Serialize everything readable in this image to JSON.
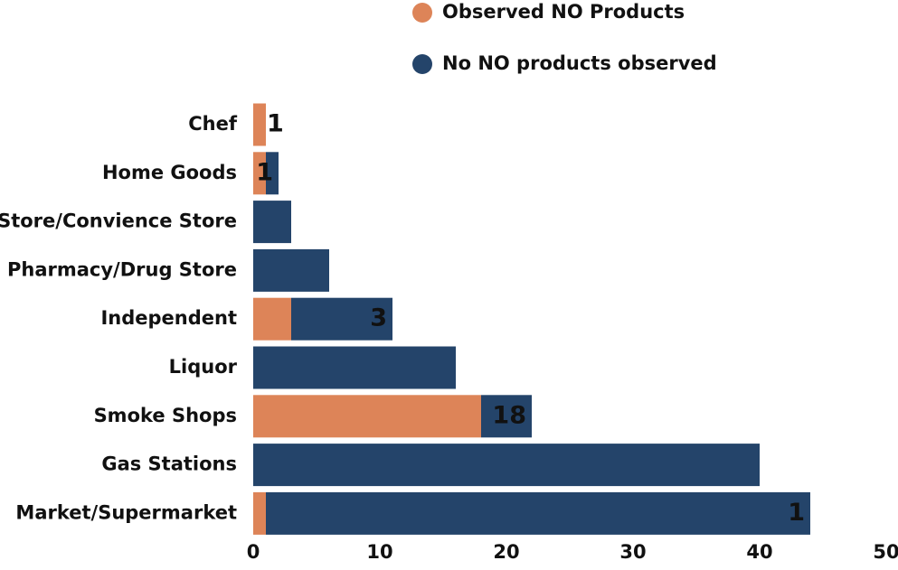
{
  "chart_data": {
    "type": "stacked-bar-horizontal",
    "categories": [
      "Chef",
      "Home Goods",
      "Store/Convience Store",
      "Pharmacy/Drug Store",
      "Independent",
      "Liquor",
      "Smoke Shops",
      "Gas Stations",
      "Market/Supermarket"
    ],
    "series": [
      {
        "name": "Observed NO Products",
        "color": "#dd8458",
        "values": [
          1,
          1,
          0,
          0,
          3,
          0,
          18,
          0,
          1
        ]
      },
      {
        "name": "No NO products observed",
        "color": "#24446a",
        "values": [
          0,
          1,
          3,
          6,
          8,
          16,
          4,
          40,
          43
        ]
      }
    ],
    "xlim": [
      0,
      50
    ],
    "xticks": [
      0,
      10,
      20,
      30,
      40,
      50
    ]
  }
}
